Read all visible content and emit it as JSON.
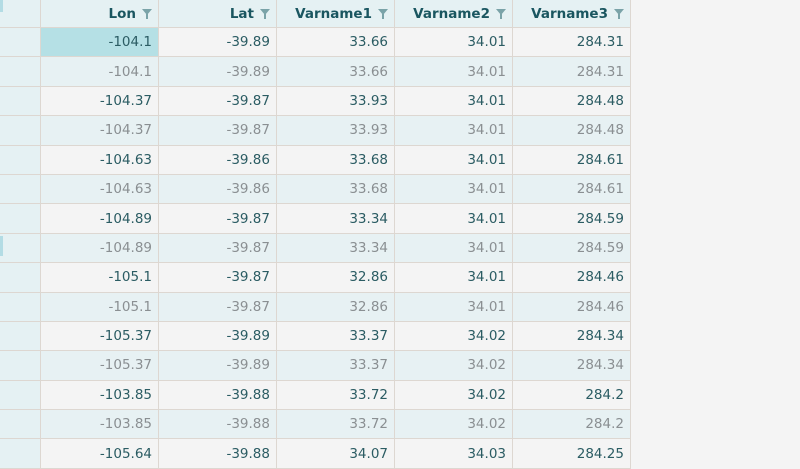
{
  "columns": [
    "Lon",
    "Lat",
    "Varname1",
    "Varname2",
    "Varname3"
  ],
  "rows": [
    [
      "-104.1",
      "-39.89",
      "33.66",
      "34.01",
      "284.31"
    ],
    [
      "-104.1",
      "-39.89",
      "33.66",
      "34.01",
      "284.31"
    ],
    [
      "-104.37",
      "-39.87",
      "33.93",
      "34.01",
      "284.48"
    ],
    [
      "-104.37",
      "-39.87",
      "33.93",
      "34.01",
      "284.48"
    ],
    [
      "-104.63",
      "-39.86",
      "33.68",
      "34.01",
      "284.61"
    ],
    [
      "-104.63",
      "-39.86",
      "33.68",
      "34.01",
      "284.61"
    ],
    [
      "-104.89",
      "-39.87",
      "33.34",
      "34.01",
      "284.59"
    ],
    [
      "-104.89",
      "-39.87",
      "33.34",
      "34.01",
      "284.59"
    ],
    [
      "-105.1",
      "-39.87",
      "32.86",
      "34.01",
      "284.46"
    ],
    [
      "-105.1",
      "-39.87",
      "32.86",
      "34.01",
      "284.46"
    ],
    [
      "-105.37",
      "-39.89",
      "33.37",
      "34.02",
      "284.34"
    ],
    [
      "-105.37",
      "-39.89",
      "33.37",
      "34.02",
      "284.34"
    ],
    [
      "-103.85",
      "-39.88",
      "33.72",
      "34.02",
      "284.2"
    ],
    [
      "-103.85",
      "-39.88",
      "33.72",
      "34.02",
      "284.2"
    ],
    [
      "-105.64",
      "-39.88",
      "34.07",
      "34.03",
      "284.25"
    ]
  ],
  "icons": {
    "column_filter": "filter-icon"
  },
  "colors": {
    "header_bg": "#e5f1f3",
    "header_text": "#1a5660",
    "selected_cell": "#b5e0e5",
    "alt_row_bg": "#e7f1f3"
  }
}
